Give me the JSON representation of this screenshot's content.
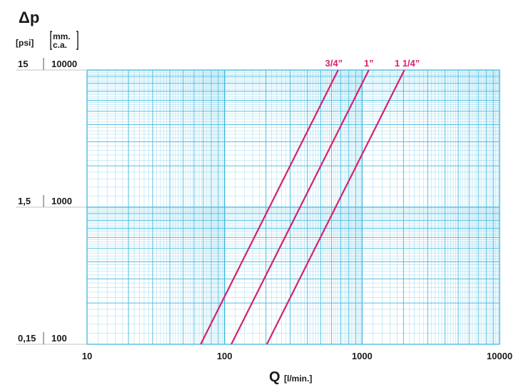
{
  "chart_data": {
    "type": "line",
    "title": "Δp",
    "xlabel": "Q",
    "xunit": "[l/min.]",
    "x_scale": "log",
    "y_scale": "log",
    "xlim": [
      10,
      10000
    ],
    "ylim": [
      100,
      10000
    ],
    "x_ticks": [
      "10",
      "100",
      "1000",
      "10000"
    ],
    "y_units": {
      "psi": "[psi]",
      "mmca": "[mm. c.a.]"
    },
    "y_ticks": [
      {
        "mmca": "100",
        "psi": "0,15",
        "value": 100
      },
      {
        "mmca": "1000",
        "psi": "1,5",
        "value": 1000
      },
      {
        "mmca": "10000",
        "psi": "15",
        "value": 10000
      }
    ],
    "grid": true,
    "grid_color": "#3fb8e0",
    "line_color": "#d6216e",
    "series": [
      {
        "name": "3/4”",
        "x": [
          67,
          670
        ],
        "y": [
          100,
          10000
        ]
      },
      {
        "name": "1”",
        "x": [
          112,
          1120
        ],
        "y": [
          100,
          10000
        ]
      },
      {
        "name": "1 1/4”",
        "x": [
          203,
          2030
        ],
        "y": [
          100,
          10000
        ]
      }
    ]
  }
}
